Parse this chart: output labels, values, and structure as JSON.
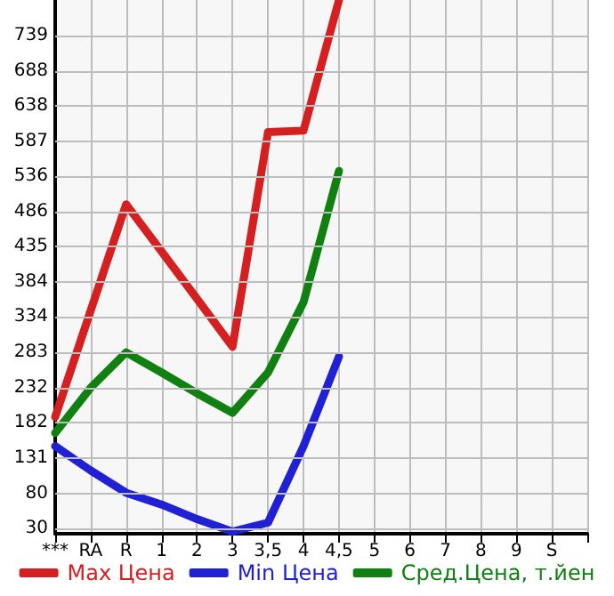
{
  "chart_data": {
    "type": "line",
    "categories": [
      "***",
      "RA",
      "R",
      "1",
      "2",
      "3",
      "3,5",
      "4",
      "4,5",
      "5",
      "6",
      "7",
      "8",
      "9",
      "S",
      null
    ],
    "series": [
      {
        "name": "Max Цена",
        "color": "#d42020",
        "values": [
          190,
          343,
          496,
          428,
          360,
          291,
          600,
          602,
          790,
          null,
          null,
          null,
          null,
          null,
          null,
          null
        ]
      },
      {
        "name": "Min Цена",
        "color": "#2020d4",
        "values": [
          148,
          113,
          81,
          64,
          43,
          25,
          38,
          148,
          277,
          null,
          null,
          null,
          null,
          null,
          null,
          null
        ]
      },
      {
        "name": "Сред.Цена, т.йен",
        "color": "#108010",
        "values": [
          167,
          232,
          283,
          254,
          224,
          196,
          254,
          355,
          544,
          null,
          null,
          null,
          null,
          null,
          null,
          null
        ]
      }
    ],
    "ylim": [
      22,
      790
    ],
    "yticks": [
      30,
      80,
      131,
      182,
      232,
      283,
      334,
      384,
      435,
      486,
      536,
      587,
      638,
      688,
      739
    ],
    "grid": true,
    "legend": "bottom",
    "marker": "none",
    "line_style": "solid"
  }
}
